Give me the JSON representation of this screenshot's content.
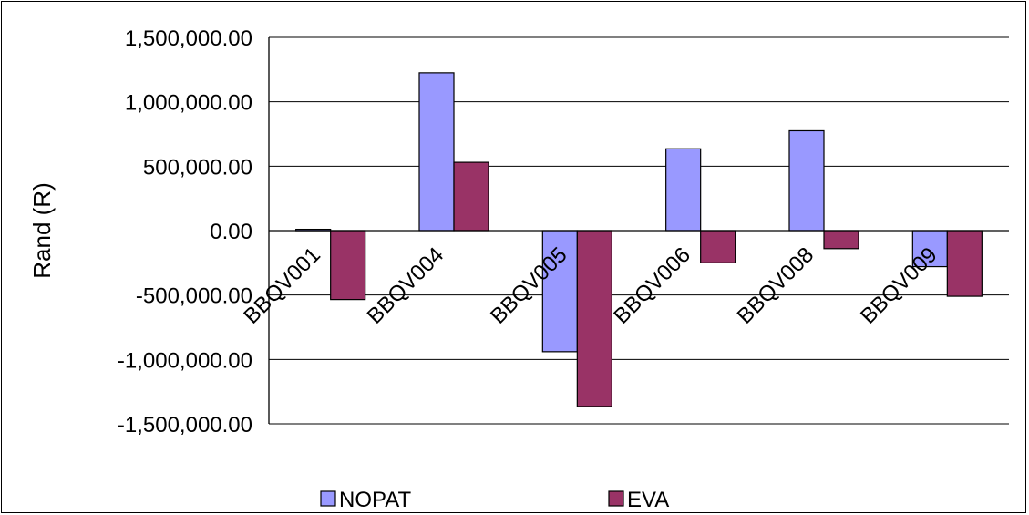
{
  "chart_data": {
    "type": "bar",
    "categories": [
      "BBQV001",
      "BBQV004",
      "BBQV005",
      "BBQV006",
      "BBQV008",
      "BBQV009"
    ],
    "series": [
      {
        "name": "NOPAT",
        "color": "#9999FF",
        "values": [
          10000,
          1225000,
          -940000,
          635000,
          775000,
          -280000
        ]
      },
      {
        "name": "EVA",
        "color": "#993366",
        "values": [
          -535000,
          530000,
          -1365000,
          -250000,
          -140000,
          -510000
        ]
      }
    ],
    "ylabel": "Rand (R)",
    "xlabel": "",
    "ylim": [
      -1500000,
      1500000
    ],
    "yticks": [
      1500000,
      1000000,
      500000,
      0,
      -500000,
      -1000000,
      -1500000
    ],
    "ytick_labels": [
      "1,500,000.00",
      "1,000,000.00",
      "500,000.00",
      "0.00",
      "-500,000.00",
      "-1,000,000.00",
      "-1,500,000.00"
    ],
    "grid": true,
    "legend_position": "bottom"
  }
}
